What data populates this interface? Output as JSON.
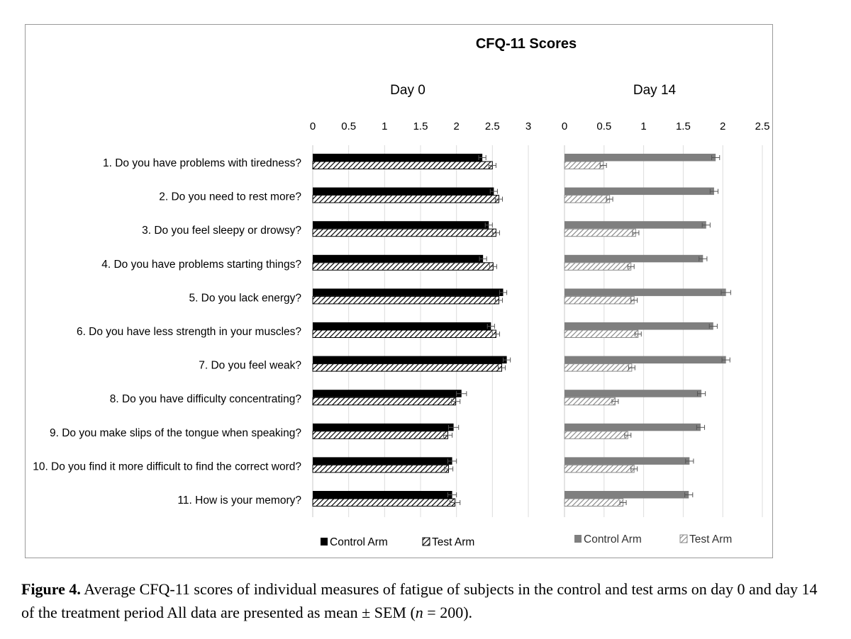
{
  "chart_data": {
    "type": "bar",
    "title": "CFQ-11 Scores",
    "categories": [
      "1. Do you have problems with tiredness?",
      "2. Do you need to rest more?",
      "3. Do you feel sleepy or drowsy?",
      "4. Do you have problems starting things?",
      "5. Do you lack energy?",
      "6. Do you have less strength in your muscles?",
      "7. Do you feel weak?",
      "8. Do you have difficulty concentrating?",
      "9. Do you make slips of the tongue when speaking?",
      "10. Do you find it more difficult to find the correct word?",
      "11. How is your memory?"
    ],
    "panels": [
      {
        "title": "Day 0",
        "xlim": [
          0,
          3
        ],
        "ticks": [
          "0",
          "0.5",
          "1",
          "1.5",
          "2",
          "2.5",
          "3"
        ],
        "tick_values": [
          0,
          0.5,
          1,
          1.5,
          2,
          2.5,
          3
        ],
        "series": [
          {
            "name": "Control Arm",
            "color": "#000000",
            "values": [
              2.36,
              2.52,
              2.45,
              2.37,
              2.65,
              2.48,
              2.7,
              2.07,
              1.96,
              1.94,
              1.94
            ],
            "errors": [
              0.05,
              0.05,
              0.05,
              0.05,
              0.05,
              0.05,
              0.05,
              0.07,
              0.07,
              0.06,
              0.06
            ]
          },
          {
            "name": "Test Arm",
            "color": "#000000",
            "values": [
              2.5,
              2.59,
              2.55,
              2.51,
              2.59,
              2.55,
              2.63,
              1.99,
              1.88,
              1.89,
              1.98
            ],
            "errors": [
              0.05,
              0.05,
              0.05,
              0.05,
              0.05,
              0.05,
              0.05,
              0.06,
              0.06,
              0.06,
              0.07
            ]
          }
        ]
      },
      {
        "title": "Day 14",
        "xlim": [
          0,
          2.5
        ],
        "ticks": [
          "0",
          "0.5",
          "1",
          "1.5",
          "2",
          "2.5"
        ],
        "tick_values": [
          0,
          0.5,
          1,
          1.5,
          2,
          2.5
        ],
        "series": [
          {
            "name": "Control Arm",
            "color": "#7f7f7f",
            "values": [
              1.91,
              1.89,
              1.79,
              1.75,
              2.04,
              1.88,
              2.04,
              1.73,
              1.72,
              1.58,
              1.57
            ],
            "errors": [
              0.05,
              0.05,
              0.05,
              0.05,
              0.06,
              0.05,
              0.05,
              0.05,
              0.05,
              0.05,
              0.05
            ]
          },
          {
            "name": "Test Arm",
            "color": "#7f7f7f",
            "values": [
              0.49,
              0.57,
              0.9,
              0.84,
              0.88,
              0.93,
              0.85,
              0.64,
              0.8,
              0.88,
              0.74
            ],
            "errors": [
              0.04,
              0.04,
              0.04,
              0.04,
              0.04,
              0.04,
              0.04,
              0.04,
              0.04,
              0.04,
              0.04
            ]
          }
        ]
      }
    ],
    "legend": [
      {
        "name": "Control Arm",
        "style": "solid"
      },
      {
        "name": "Test Arm",
        "style": "hatched"
      }
    ],
    "grid": true
  },
  "caption": {
    "label": "Figure 4.",
    "text": " Average CFQ-11 scores of individual measures of fatigue of subjects in the control and test arms on day 0 and day 14 of the treatment period All data are presented as mean ± SEM (",
    "n_symbol": "n",
    "n_value": " = 200)."
  }
}
